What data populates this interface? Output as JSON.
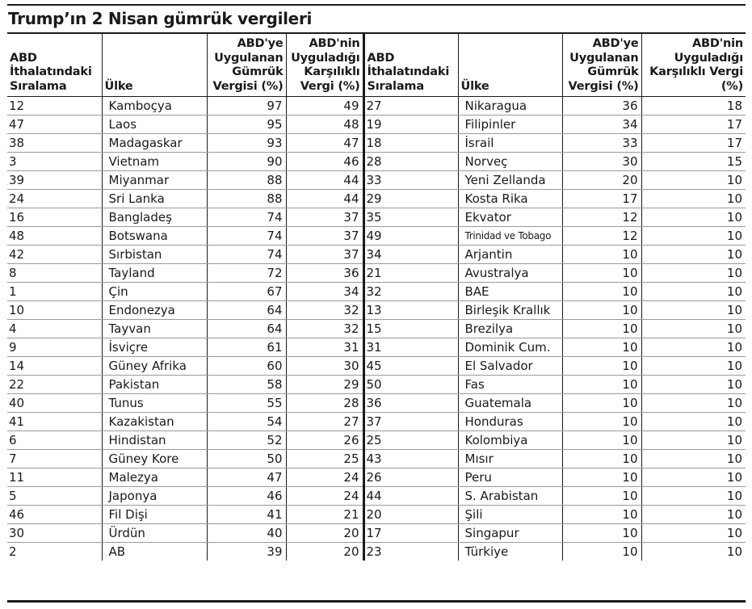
{
  "title": "Trump’ın 2 Nisan gümrük vergileri",
  "headers": {
    "rank": "ABD İthalatındaki Sıralama",
    "country": "Ülke",
    "us_tax": "ABD'ye Uygulanan Gümrük Vergisi (%)",
    "reciprocal": "ABD'nin Uyguladığı Karşılıklı Vergi (%)"
  },
  "left_rows": [
    {
      "rank": "12",
      "country": "Kamboçya",
      "us_tax": "97",
      "reciprocal": "49"
    },
    {
      "rank": "47",
      "country": "Laos",
      "us_tax": "95",
      "reciprocal": "48"
    },
    {
      "rank": "38",
      "country": "Madagaskar",
      "us_tax": "93",
      "reciprocal": "47"
    },
    {
      "rank": "3",
      "country": "Vietnam",
      "us_tax": "90",
      "reciprocal": "46"
    },
    {
      "rank": "39",
      "country": "Miyanmar",
      "us_tax": "88",
      "reciprocal": "44"
    },
    {
      "rank": "24",
      "country": "Sri Lanka",
      "us_tax": "88",
      "reciprocal": "44"
    },
    {
      "rank": "16",
      "country": "Bangladeş",
      "us_tax": "74",
      "reciprocal": "37"
    },
    {
      "rank": "48",
      "country": "Botswana",
      "us_tax": "74",
      "reciprocal": "37"
    },
    {
      "rank": "42",
      "country": "Sırbistan",
      "us_tax": "74",
      "reciprocal": "37"
    },
    {
      "rank": "8",
      "country": "Tayland",
      "us_tax": "72",
      "reciprocal": "36"
    },
    {
      "rank": "1",
      "country": "Çin",
      "us_tax": "67",
      "reciprocal": "34"
    },
    {
      "rank": "10",
      "country": "Endonezya",
      "us_tax": "64",
      "reciprocal": "32"
    },
    {
      "rank": "4",
      "country": "Tayvan",
      "us_tax": "64",
      "reciprocal": "32"
    },
    {
      "rank": "9",
      "country": "İsviçre",
      "us_tax": "61",
      "reciprocal": "31"
    },
    {
      "rank": "14",
      "country": "Güney Afrika",
      "us_tax": "60",
      "reciprocal": "30"
    },
    {
      "rank": "22",
      "country": "Pakistan",
      "us_tax": "58",
      "reciprocal": "29"
    },
    {
      "rank": "40",
      "country": "Tunus",
      "us_tax": "55",
      "reciprocal": "28"
    },
    {
      "rank": "41",
      "country": "Kazakistan",
      "us_tax": "54",
      "reciprocal": "27"
    },
    {
      "rank": "6",
      "country": "Hindistan",
      "us_tax": "52",
      "reciprocal": "26"
    },
    {
      "rank": "7",
      "country": "Güney Kore",
      "us_tax": "50",
      "reciprocal": "25"
    },
    {
      "rank": "11",
      "country": "Malezya",
      "us_tax": "47",
      "reciprocal": "24"
    },
    {
      "rank": "5",
      "country": "Japonya",
      "us_tax": "46",
      "reciprocal": "24"
    },
    {
      "rank": "46",
      "country": "Fil Dişi",
      "us_tax": "41",
      "reciprocal": "21"
    },
    {
      "rank": "30",
      "country": "Ürdün",
      "us_tax": "40",
      "reciprocal": "20"
    },
    {
      "rank": "2",
      "country": "AB",
      "us_tax": "39",
      "reciprocal": "20"
    }
  ],
  "right_rows": [
    {
      "rank": "27",
      "country": "Nikaragua",
      "us_tax": "36",
      "reciprocal": "18"
    },
    {
      "rank": "19",
      "country": "Filipinler",
      "us_tax": "34",
      "reciprocal": "17"
    },
    {
      "rank": "18",
      "country": "İsrail",
      "us_tax": "33",
      "reciprocal": "17"
    },
    {
      "rank": "28",
      "country": "Norveç",
      "us_tax": "30",
      "reciprocal": "15"
    },
    {
      "rank": "33",
      "country": "Yeni Zellanda",
      "us_tax": "20",
      "reciprocal": "10"
    },
    {
      "rank": "29",
      "country": "Kosta Rika",
      "us_tax": "17",
      "reciprocal": "10"
    },
    {
      "rank": "35",
      "country": "Ekvator",
      "us_tax": "12",
      "reciprocal": "10"
    },
    {
      "rank": "49",
      "country": "Trinidad ve Tobago",
      "us_tax": "12",
      "reciprocal": "10",
      "small": true
    },
    {
      "rank": "34",
      "country": "Arjantin",
      "us_tax": "10",
      "reciprocal": "10"
    },
    {
      "rank": "21",
      "country": "Avustralya",
      "us_tax": "10",
      "reciprocal": "10"
    },
    {
      "rank": "32",
      "country": "BAE",
      "us_tax": "10",
      "reciprocal": "10"
    },
    {
      "rank": "13",
      "country": "Birleşik Krallık",
      "us_tax": "10",
      "reciprocal": "10"
    },
    {
      "rank": "15",
      "country": "Brezilya",
      "us_tax": "10",
      "reciprocal": "10"
    },
    {
      "rank": "31",
      "country": "Dominik Cum.",
      "us_tax": "10",
      "reciprocal": "10"
    },
    {
      "rank": "45",
      "country": "El Salvador",
      "us_tax": "10",
      "reciprocal": "10"
    },
    {
      "rank": "50",
      "country": "Fas",
      "us_tax": "10",
      "reciprocal": "10"
    },
    {
      "rank": "36",
      "country": "Guatemala",
      "us_tax": "10",
      "reciprocal": "10"
    },
    {
      "rank": "37",
      "country": "Honduras",
      "us_tax": "10",
      "reciprocal": "10"
    },
    {
      "rank": "25",
      "country": "Kolombiya",
      "us_tax": "10",
      "reciprocal": "10"
    },
    {
      "rank": "43",
      "country": "Mısır",
      "us_tax": "10",
      "reciprocal": "10"
    },
    {
      "rank": "26",
      "country": "Peru",
      "us_tax": "10",
      "reciprocal": "10"
    },
    {
      "rank": "44",
      "country": "S. Arabistan",
      "us_tax": "10",
      "reciprocal": "10"
    },
    {
      "rank": "20",
      "country": "Şili",
      "us_tax": "10",
      "reciprocal": "10"
    },
    {
      "rank": "17",
      "country": "Singapur",
      "us_tax": "10",
      "reciprocal": "10"
    },
    {
      "rank": "23",
      "country": "Türkiye",
      "us_tax": "10",
      "reciprocal": "10"
    }
  ]
}
